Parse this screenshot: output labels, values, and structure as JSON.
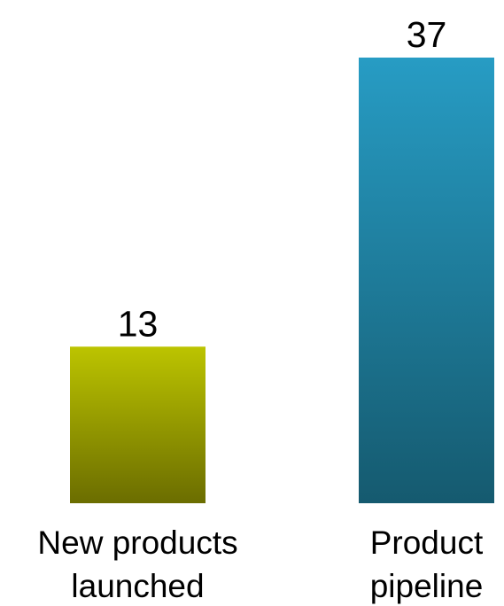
{
  "chart_data": {
    "type": "bar",
    "categories": [
      "New products launched",
      "Product pipeline"
    ],
    "category_lines": [
      [
        "New products",
        "launched"
      ],
      [
        "Product",
        "pipeline"
      ]
    ],
    "values": [
      13,
      37
    ],
    "value_labels": [
      "13",
      "37"
    ],
    "title": "",
    "xlabel": "",
    "ylabel": "",
    "ylim": [
      0,
      37
    ],
    "grid": false,
    "legend": "none",
    "bar_colors": [
      {
        "top": "#bcc400",
        "bottom": "#6b6d00"
      },
      {
        "top": "#279cc4",
        "bottom": "#155a6f"
      }
    ]
  }
}
